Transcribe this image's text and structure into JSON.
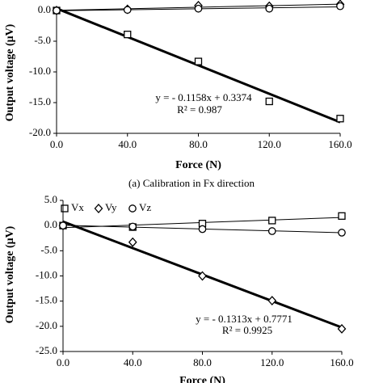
{
  "chart_data": [
    {
      "type": "scatter",
      "x_label": "Force (N)",
      "y_label": "Output voltage (μV)",
      "caption": "(a) Calibration in Fx direction",
      "annotations": [
        "y = - 0.1158x + 0.3374",
        "R² = 0.987"
      ],
      "x": [
        0,
        40,
        80,
        120,
        160
      ],
      "series": [
        {
          "marker": "square",
          "color": "#000000",
          "values": [
            0,
            -3.9,
            -8.3,
            -14.8,
            -17.6
          ],
          "fit": {
            "slope": -0.1158,
            "intercept": 0.3374
          }
        },
        {
          "marker": "diamond",
          "color": "#000000",
          "values": [
            0,
            0.2,
            0.8,
            0.7,
            1.0
          ]
        },
        {
          "marker": "circle",
          "color": "#000000",
          "values": [
            0,
            0.1,
            0.3,
            0.3,
            0.7
          ]
        }
      ],
      "xlim": [
        0,
        160
      ],
      "xticks": [
        {
          "value": 0,
          "label": "0.0"
        },
        {
          "value": 40,
          "label": "40.0"
        },
        {
          "value": 80,
          "label": "80.0"
        },
        {
          "value": 120,
          "label": "120.0"
        },
        {
          "value": 160,
          "label": "160.0"
        }
      ],
      "ylim": [
        -20,
        0
      ],
      "yticks": [
        {
          "value": 0,
          "label": "0.0"
        },
        {
          "value": -5,
          "label": "-5.0"
        },
        {
          "value": -10,
          "label": "-10.0"
        },
        {
          "value": -15,
          "label": "-15.0"
        },
        {
          "value": -20,
          "label": "-20.0"
        }
      ]
    },
    {
      "type": "scatter",
      "x_label": "Force (N)",
      "y_label": "Output voltage (μV)",
      "annotations": [
        "y = - 0.1313x + 0.7771",
        "R² = 0.9925"
      ],
      "legend": "top-left",
      "x": [
        0,
        40,
        80,
        120,
        160
      ],
      "series": [
        {
          "name": "Vx",
          "marker": "square",
          "color": "#000000",
          "values": [
            0,
            -0.3,
            0.4,
            1.0,
            1.9
          ]
        },
        {
          "name": "Vy",
          "marker": "diamond",
          "color": "#000000",
          "values": [
            0,
            -3.3,
            -10.0,
            -14.9,
            -20.5
          ],
          "fit": {
            "slope": -0.1313,
            "intercept": 0.7771
          }
        },
        {
          "name": "Vz",
          "marker": "circle",
          "color": "#000000",
          "values": [
            0,
            -0.2,
            -0.7,
            -1.1,
            -1.4
          ]
        }
      ],
      "xlim": [
        0,
        160
      ],
      "xticks": [
        {
          "value": 0,
          "label": "0.0"
        },
        {
          "value": 40,
          "label": "40.0"
        },
        {
          "value": 80,
          "label": "80.0"
        },
        {
          "value": 120,
          "label": "120.0"
        },
        {
          "value": 160,
          "label": "160.0"
        }
      ],
      "ylim": [
        -25,
        5
      ],
      "yticks": [
        {
          "value": 5,
          "label": "5.0"
        },
        {
          "value": 0,
          "label": "0.0"
        },
        {
          "value": -5,
          "label": "-5.0"
        },
        {
          "value": -10,
          "label": "-10.0"
        },
        {
          "value": -15,
          "label": "-15.0"
        },
        {
          "value": -20,
          "label": "-20.0"
        },
        {
          "value": -25,
          "label": "-25.0"
        }
      ]
    }
  ]
}
